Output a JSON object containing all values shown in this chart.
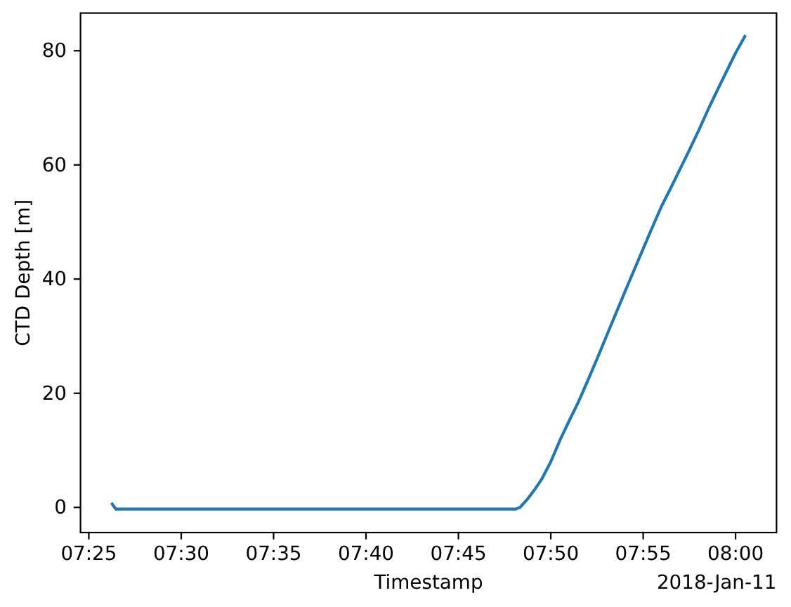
{
  "chart_data": {
    "type": "line",
    "xlabel": "Timestamp",
    "ylabel": "CTD Depth [m]",
    "annotations": [
      "2018-Jan-11"
    ],
    "x": [
      "2018-01-11T07:26:16",
      "2018-01-11T07:26:28",
      "2018-01-11T07:48:05",
      "2018-01-11T07:48:20",
      "2018-01-11T07:48:45",
      "2018-01-11T07:49:10",
      "2018-01-11T07:49:30",
      "2018-01-11T07:50:00",
      "2018-01-11T07:50:30",
      "2018-01-11T07:51:00",
      "2018-01-11T07:51:30",
      "2018-01-11T07:52:00",
      "2018-01-11T07:52:30",
      "2018-01-11T07:53:00",
      "2018-01-11T07:53:30",
      "2018-01-11T07:54:00",
      "2018-01-11T07:54:30",
      "2018-01-11T07:55:00",
      "2018-01-11T07:55:30",
      "2018-01-11T07:56:00",
      "2018-01-11T07:56:30",
      "2018-01-11T07:57:00",
      "2018-01-11T07:57:30",
      "2018-01-11T07:58:00",
      "2018-01-11T07:58:30",
      "2018-01-11T07:59:00",
      "2018-01-11T07:59:30",
      "2018-01-11T08:00:00",
      "2018-01-11T08:00:30"
    ],
    "series": [
      {
        "color": "#1f77b4",
        "values": [
          0.6,
          -0.3,
          -0.3,
          0.0,
          1.5,
          3.3,
          4.9,
          8.0,
          11.8,
          15.2,
          18.5,
          22.2,
          26.0,
          29.9,
          33.8,
          37.7,
          41.5,
          45.3,
          49.1,
          52.8,
          56.0,
          59.3,
          62.6,
          66.0,
          69.6,
          73.0,
          76.3,
          79.6,
          82.5
        ]
      }
    ],
    "xlim": [
      "2018-01-11T07:24:33",
      "2018-01-11T08:02:13"
    ],
    "xticks": [
      {
        "value": "2018-01-11T07:25",
        "label": "07:25"
      },
      {
        "value": "2018-01-11T07:30",
        "label": "07:30"
      },
      {
        "value": "2018-01-11T07:35",
        "label": "07:35"
      },
      {
        "value": "2018-01-11T07:40",
        "label": "07:40"
      },
      {
        "value": "2018-01-11T07:45",
        "label": "07:45"
      },
      {
        "value": "2018-01-11T07:50",
        "label": "07:50"
      },
      {
        "value": "2018-01-11T07:55",
        "label": "07:55"
      },
      {
        "value": "2018-01-11T08:00",
        "label": "08:00"
      }
    ],
    "ylim": [
      -4.4,
      86.6
    ],
    "yticks": [
      0,
      20,
      40,
      60,
      80
    ]
  }
}
